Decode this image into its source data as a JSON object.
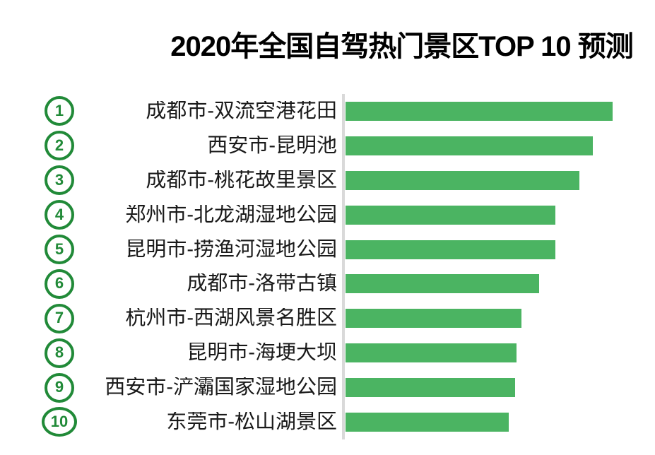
{
  "title": "2020年全国自驾热门景区TOP 10 预测",
  "colors": {
    "background": "#ffffff",
    "title": "#000000",
    "label": "#1a1a1a",
    "bar": "#4bb462",
    "badge": "#218a38",
    "axis": "#d9d9d9"
  },
  "chart_data": {
    "type": "bar",
    "orientation": "horizontal",
    "title": "2020年全国自驾热门景区TOP 10 预测",
    "ranks": [
      "1",
      "2",
      "3",
      "4",
      "5",
      "6",
      "7",
      "8",
      "9",
      "10"
    ],
    "categories": [
      "成都市-双流空港花田",
      "西安市-昆明池",
      "成都市-桃花故里景区",
      "郑州市-北龙湖湿地公园",
      "昆明市-捞渔河湿地公园",
      "成都市-洛带古镇",
      "杭州市-西湖风景名胜区",
      "昆明市-海埂大坝",
      "西安市-浐灞国家湿地公园",
      "东莞市-松山湖景区"
    ],
    "values": [
      100,
      92.5,
      87.5,
      78.5,
      78.5,
      72.5,
      66,
      64,
      63.5,
      61
    ],
    "xlim": [
      0,
      100
    ],
    "xlabel": "",
    "ylabel": "",
    "grid": false,
    "legend": false,
    "data_labels": false
  }
}
